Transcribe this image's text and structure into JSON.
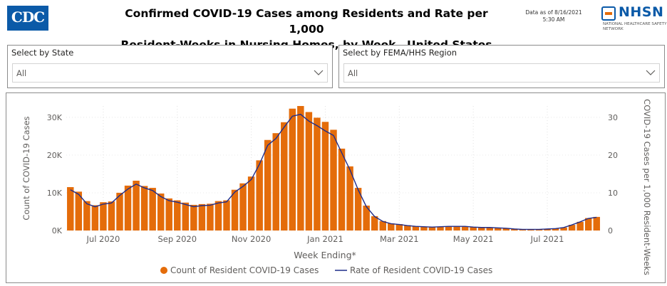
{
  "header": {
    "logo_text": "CDC",
    "title_line1": "Confirmed COVID-19 Cases among Residents and Rate per 1,000",
    "title_line2": "Resident-Weeks in Nursing Homes, by Week—United States",
    "as_of_line1": "Data as of 8/16/2021",
    "as_of_line2": "5:30 AM",
    "nhsn_name": "NHSN",
    "nhsn_subtitle": "National Healthcare Safety Network"
  },
  "filters": {
    "state_label": "Select by State",
    "state_value": "All",
    "region_label": "Select by FEMA/HHS Region",
    "region_value": "All"
  },
  "chart_data": {
    "type": "bar",
    "bar_color": "#e46c0a",
    "line_color": "#1f2d8a",
    "xlabel": "Week Ending*",
    "ylabel_left": "Count of COVID-19 Cases",
    "ylabel_right": "COVID-19 Cases per 1,000 Resident-Weeks",
    "y_left_ticks": [
      "0K",
      "10K",
      "20K",
      "30K"
    ],
    "y_left_range": [
      0,
      33000
    ],
    "y_right_ticks": [
      "0",
      "10",
      "20",
      "30"
    ],
    "y_right_range": [
      0,
      33000
    ],
    "x_tick_labels": [
      "Jul 2020",
      "Sep 2020",
      "Nov 2020",
      "Jan 2021",
      "Mar 2021",
      "May 2021",
      "Jul 2021"
    ],
    "x_tick_index": [
      4.5,
      13.5,
      22.5,
      31.5,
      40.5,
      49.5,
      58.5
    ],
    "legend": [
      "Count of Resident COVID-19 Cases",
      "Rate of Resident COVID-19 Cases"
    ],
    "series": [
      {
        "name": "Count of Resident COVID-19 Cases",
        "type": "bar",
        "values": [
          11500,
          10300,
          7800,
          6700,
          7500,
          7700,
          10000,
          11900,
          13200,
          11800,
          11300,
          9800,
          8500,
          8000,
          7400,
          6800,
          7000,
          7100,
          7800,
          8000,
          10800,
          12500,
          14300,
          18600,
          24000,
          25800,
          28700,
          32300,
          33000,
          31400,
          29900,
          28800,
          26700,
          21700,
          17000,
          11300,
          6600,
          3800,
          2500,
          1900,
          1700,
          1400,
          1100,
          1000,
          900,
          1000,
          1100,
          1100,
          1100,
          900,
          800,
          800,
          700,
          600,
          400,
          300,
          300,
          300,
          400,
          500,
          800,
          1500,
          2300,
          3300,
          3600
        ]
      },
      {
        "name": "Rate of Resident COVID-19 Cases",
        "type": "line",
        "values": [
          10.8,
          9.6,
          7.1,
          6.3,
          7.0,
          7.3,
          9.3,
          11.0,
          12.3,
          11.3,
          10.6,
          9.0,
          7.9,
          7.5,
          6.9,
          6.3,
          6.6,
          6.7,
          7.3,
          7.6,
          10.2,
          11.7,
          13.5,
          17.6,
          22.6,
          24.4,
          27.4,
          30.3,
          30.8,
          29.0,
          27.8,
          26.4,
          25.2,
          20.6,
          16.1,
          10.8,
          6.3,
          3.7,
          2.4,
          1.8,
          1.6,
          1.3,
          1.1,
          1.0,
          0.9,
          1.0,
          1.1,
          1.1,
          1.1,
          0.9,
          0.8,
          0.8,
          0.7,
          0.6,
          0.4,
          0.3,
          0.3,
          0.3,
          0.4,
          0.5,
          0.8,
          1.5,
          2.3,
          3.2,
          3.5
        ]
      }
    ]
  }
}
